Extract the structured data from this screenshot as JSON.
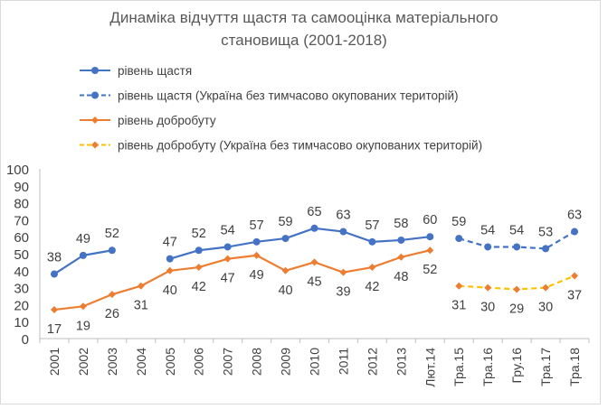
{
  "chart_data": {
    "type": "line",
    "title_line1": "Динаміка відчуття щастя та самооцінка матеріального",
    "title_line2": "становища  (2001-2018)",
    "categories": [
      "2001",
      "2002",
      "2003",
      "2004",
      "2005",
      "2006",
      "2007",
      "2008",
      "2009",
      "2010",
      "2011",
      "2012",
      "2013",
      "Лют.14",
      "Тра.15",
      "Тра.16",
      "Гру.16",
      "Тра.17",
      "Тра.18"
    ],
    "ylim": [
      0,
      100
    ],
    "yticks": [
      0,
      10,
      20,
      30,
      40,
      50,
      60,
      70,
      80,
      90,
      100
    ],
    "grid": false,
    "legend_position": "top",
    "series": [
      {
        "name": "рівень щастя",
        "color": "#4472c4",
        "dash": false,
        "marker": "circle",
        "values": [
          38,
          49,
          52,
          null,
          47,
          52,
          54,
          57,
          59,
          65,
          63,
          57,
          58,
          60,
          null,
          null,
          null,
          null,
          null
        ]
      },
      {
        "name": "рівень щастя  (Україна без тимчасово окупованих територій)",
        "color": "#4472c4",
        "dash": true,
        "marker": "circle",
        "values": [
          null,
          null,
          null,
          null,
          null,
          null,
          null,
          null,
          null,
          null,
          null,
          null,
          null,
          null,
          59,
          54,
          54,
          53,
          63
        ]
      },
      {
        "name": "рівень добробуту",
        "color": "#ed7d31",
        "dash": false,
        "marker": "diamond",
        "values": [
          17,
          19,
          26,
          31,
          40,
          42,
          47,
          49,
          40,
          45,
          39,
          42,
          48,
          52,
          null,
          null,
          null,
          null,
          null
        ]
      },
      {
        "name": "рівень добробуту  (Україна без тимчасово окупованих територій)",
        "color": "#ffc000",
        "marker_color": "#ed7d31",
        "dash": true,
        "marker": "diamond",
        "values": [
          null,
          null,
          null,
          null,
          null,
          null,
          null,
          null,
          null,
          null,
          null,
          null,
          null,
          null,
          31,
          30,
          29,
          30,
          37
        ]
      }
    ]
  }
}
